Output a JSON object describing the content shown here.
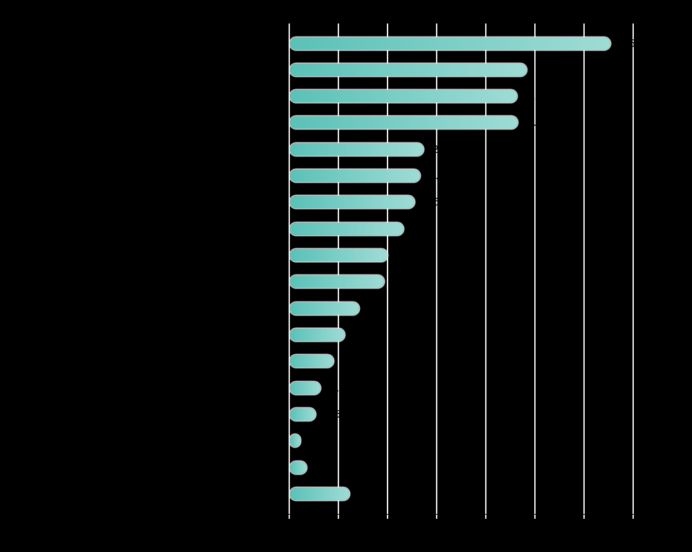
{
  "figure": {
    "background_color": "#000000",
    "title": ""
  },
  "chart_data": {
    "type": "bar",
    "orientation": "horizontal",
    "title": "",
    "xlabel": "",
    "ylabel": "",
    "grid": true,
    "xlim": [
      0,
      7
    ],
    "x_gridline_positions": [
      0,
      1,
      2,
      3,
      4,
      5,
      6,
      7
    ],
    "tick_labels_legible": false,
    "category_labels_legible": false,
    "categories": [
      "",
      "",
      "",
      "",
      "",
      "",
      "",
      "",
      "",
      "",
      "",
      "",
      "",
      "",
      "",
      "",
      "",
      ""
    ],
    "values": [
      6.51,
      4.81,
      4.61,
      4.63,
      2.71,
      2.64,
      2.53,
      2.31,
      1.98,
      1.91,
      1.41,
      1.11,
      0.89,
      0.62,
      0.52,
      0.21,
      0.34,
      1.21
    ],
    "value_labels": [
      "6.5",
      "4.8",
      "4.6",
      "4.6",
      "2.7",
      "2.6",
      "2.5",
      "2.3",
      "2.0",
      "1.9",
      "1.4",
      "1.1",
      "0.9",
      "0.6",
      "0.5",
      "0.2",
      "0.3",
      "1.2"
    ],
    "bar_color_start": "#5ac1b7",
    "bar_color_end": "#9edcd5",
    "gridline_color": "#efedec",
    "tick_color": "#efedec",
    "text_color": "#000000"
  }
}
